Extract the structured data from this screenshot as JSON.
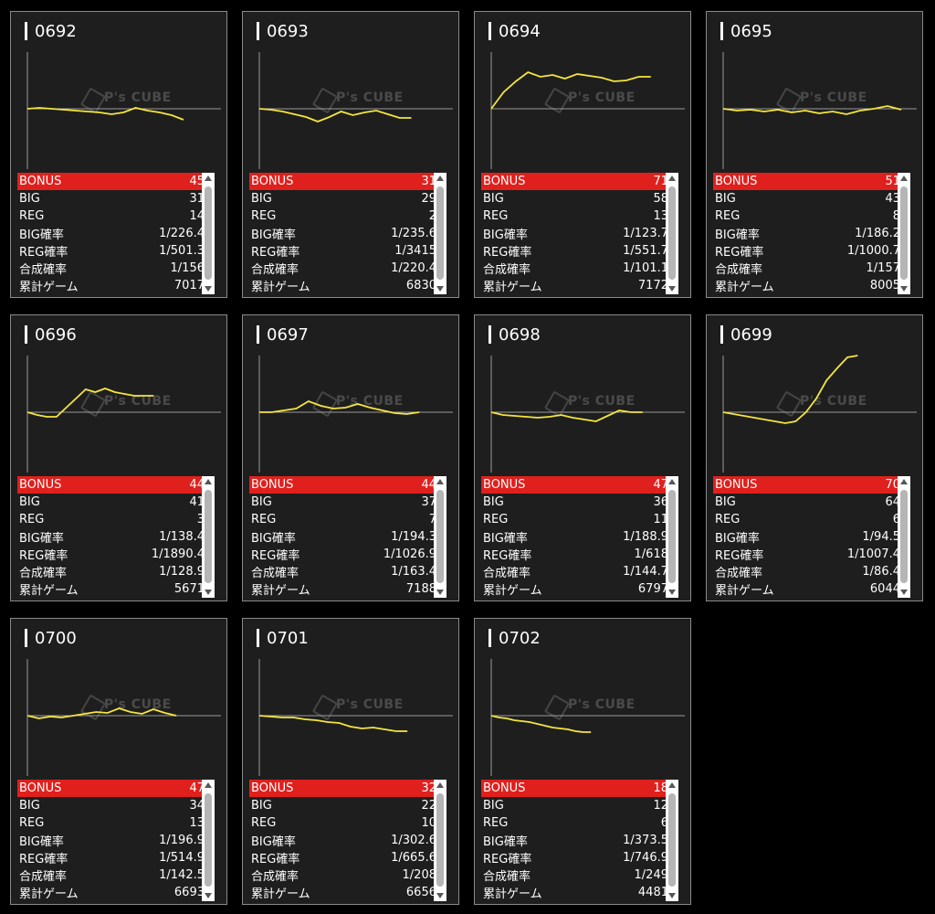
{
  "watermark": "P's CUBE",
  "colors": {
    "line": "#f5e63c",
    "bonus_bg": "#e0201d",
    "card_bg": "#1e1e1e"
  },
  "labels": {
    "bonus": "BONUS",
    "big": "BIG",
    "reg": "REG",
    "big_rate": "BIG確率",
    "reg_rate": "REG確率",
    "total_rate": "合成確率",
    "games": "累計ゲーム"
  },
  "machines": [
    {
      "id": "0692",
      "bonus": "45",
      "big": "31",
      "reg": "14",
      "big_rate": "1/226.4",
      "reg_rate": "1/501.3",
      "total_rate": "1/156",
      "games": "7017",
      "trend": [
        0,
        1,
        0,
        -1,
        -2,
        -3,
        -4,
        -6,
        -4,
        1,
        -2,
        -4,
        -7,
        -12
      ]
    },
    {
      "id": "0693",
      "bonus": "31",
      "big": "29",
      "reg": "2",
      "big_rate": "1/235.6",
      "reg_rate": "1/3415",
      "total_rate": "1/220.4",
      "games": "6830",
      "trend": [
        0,
        -1,
        -3,
        -6,
        -9,
        -14,
        -9,
        -3,
        -7,
        -4,
        -2,
        -6,
        -10,
        -10
      ]
    },
    {
      "id": "0694",
      "bonus": "71",
      "big": "58",
      "reg": "13",
      "big_rate": "1/123.7",
      "reg_rate": "1/551.7",
      "total_rate": "1/101.1",
      "games": "7172",
      "trend": [
        0,
        18,
        30,
        40,
        35,
        37,
        33,
        38,
        36,
        34,
        30,
        31,
        35,
        35
      ]
    },
    {
      "id": "0695",
      "bonus": "51",
      "big": "43",
      "reg": "8",
      "big_rate": "1/186.2",
      "reg_rate": "1/1000.7",
      "total_rate": "1/157",
      "games": "8005",
      "trend": [
        0,
        -2,
        -1,
        -3,
        -1,
        -4,
        -2,
        -5,
        -3,
        -6,
        -2,
        0,
        3,
        -1
      ]
    },
    {
      "id": "0696",
      "bonus": "44",
      "big": "41",
      "reg": "3",
      "big_rate": "1/138.4",
      "reg_rate": "1/1890.4",
      "total_rate": "1/128.9",
      "games": "5671",
      "trend": [
        0,
        -3,
        -5,
        -5,
        5,
        15,
        25,
        22,
        26,
        22,
        20,
        18,
        18,
        18
      ]
    },
    {
      "id": "0697",
      "bonus": "44",
      "big": "37",
      "reg": "7",
      "big_rate": "1/194.3",
      "reg_rate": "1/1026.9",
      "total_rate": "1/163.4",
      "games": "7188",
      "trend": [
        0,
        0,
        2,
        4,
        12,
        7,
        4,
        5,
        9,
        5,
        2,
        -1,
        -2,
        0
      ]
    },
    {
      "id": "0698",
      "bonus": "47",
      "big": "36",
      "reg": "11",
      "big_rate": "1/188.9",
      "reg_rate": "1/618",
      "total_rate": "1/144.7",
      "games": "6797",
      "trend": [
        0,
        -3,
        -4,
        -5,
        -6,
        -5,
        -3,
        -6,
        -8,
        -10,
        -4,
        2,
        0,
        0
      ]
    },
    {
      "id": "0699",
      "bonus": "70",
      "big": "64",
      "reg": "6",
      "big_rate": "1/94.5",
      "reg_rate": "1/1007.4",
      "total_rate": "1/86.4",
      "games": "6044",
      "trend": [
        0,
        -2,
        -4,
        -6,
        -8,
        -10,
        -12,
        -10,
        0,
        15,
        35,
        48,
        60,
        62
      ]
    },
    {
      "id": "0700",
      "bonus": "47",
      "big": "34",
      "reg": "13",
      "big_rate": "1/196.9",
      "reg_rate": "1/514.9",
      "total_rate": "1/142.5",
      "games": "6693",
      "trend": [
        0,
        -3,
        -1,
        -2,
        0,
        2,
        4,
        3,
        8,
        4,
        2,
        7,
        3,
        0
      ]
    },
    {
      "id": "0701",
      "bonus": "32",
      "big": "22",
      "reg": "10",
      "big_rate": "1/302.6",
      "reg_rate": "1/665.6",
      "total_rate": "1/208",
      "games": "6656",
      "trend": [
        0,
        -1,
        -2,
        -2,
        -4,
        -5,
        -7,
        -8,
        -12,
        -14,
        -13,
        -15,
        -17,
        -17
      ]
    },
    {
      "id": "0702",
      "bonus": "18",
      "big": "12",
      "reg": "6",
      "big_rate": "1/373.5",
      "reg_rate": "1/746.9",
      "total_rate": "1/249",
      "games": "4481",
      "trend": [
        0,
        -2,
        -3,
        -5,
        -6,
        -7,
        -9,
        -11,
        -13,
        -14,
        -15,
        -17,
        -18,
        -18
      ]
    }
  ]
}
